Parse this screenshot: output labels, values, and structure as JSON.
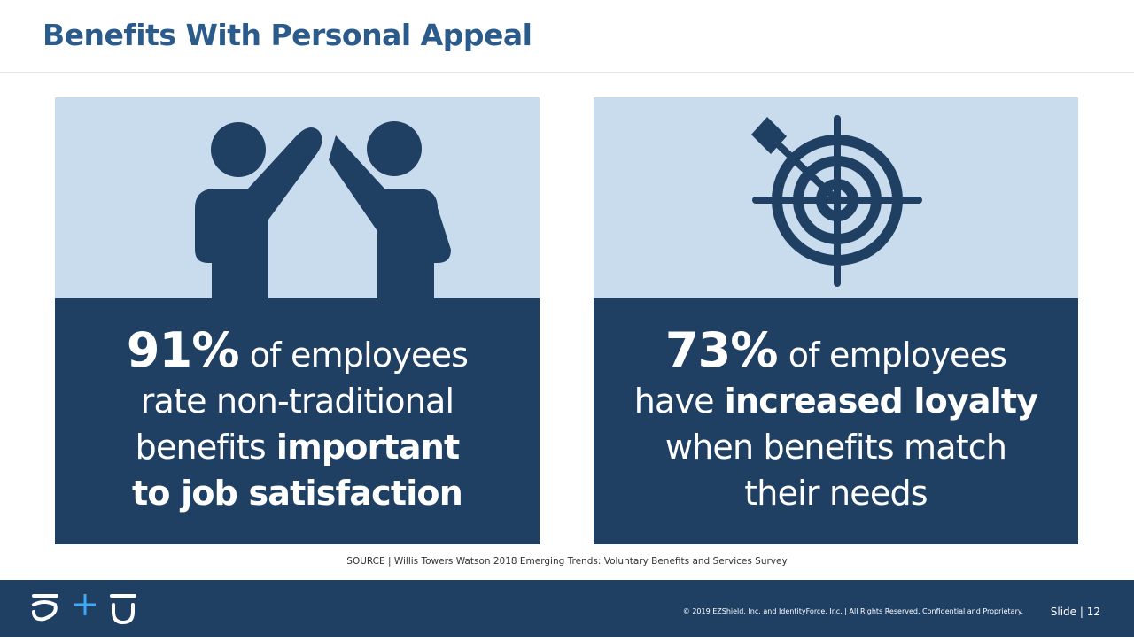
{
  "header": {
    "title": "Benefits With Personal Appeal"
  },
  "cards": [
    {
      "lines": [
        [
          {
            "text": "91%",
            "bold": true,
            "stat": true
          },
          {
            "text": "of employees",
            "bold": false
          }
        ],
        [
          {
            "text": "rate non-traditional",
            "bold": false
          }
        ],
        [
          {
            "text": "benefits",
            "bold": false
          },
          {
            "text": "important",
            "bold": true
          }
        ],
        [
          {
            "text": "to job satisfaction",
            "bold": true
          }
        ]
      ]
    },
    {
      "lines": [
        [
          {
            "text": "73%",
            "bold": true,
            "stat": true
          },
          {
            "text": "of employees",
            "bold": false
          }
        ],
        [
          {
            "text": "have",
            "bold": false
          },
          {
            "text": "increased loyalty",
            "bold": true
          }
        ],
        [
          {
            "text": "when benefits match",
            "bold": false
          }
        ],
        [
          {
            "text": "their needs",
            "bold": false
          }
        ]
      ]
    }
  ],
  "source": "SOURCE | Willis Towers Watson 2018 Emerging Trends: Voluntary Benefits and Services Survey",
  "footer": {
    "copyright": "© 2019 EZShield, Inc. and IdentityForce, Inc. | All Rights Reserved. Confidential and Proprietary.",
    "slide": "Slide | 12"
  }
}
